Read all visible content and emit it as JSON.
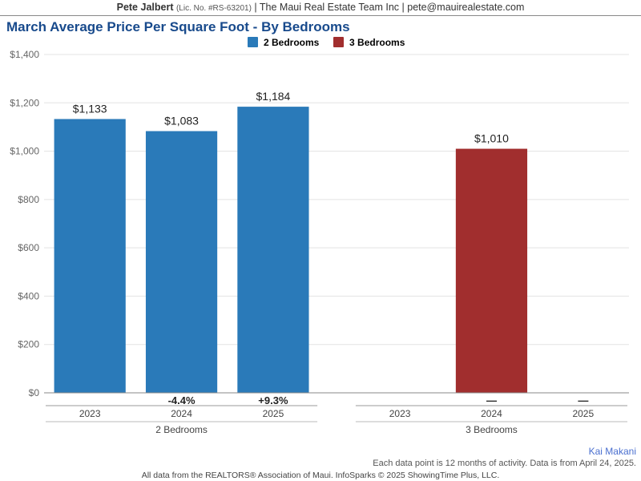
{
  "header": {
    "name": "Pete Jalbert",
    "license": "(Lic. No. #RS-63201)",
    "sep": " | ",
    "company": "The Maui Real Estate Team Inc",
    "email": "pete@mauirealestate.com"
  },
  "chart": {
    "type": "bar",
    "title": "March Average Price Per Square Foot - By Bedrooms",
    "title_color": "#184a8c",
    "title_fontsize": 17,
    "legend": [
      {
        "label": "2 Bedrooms",
        "color": "#2a7ab9"
      },
      {
        "label": "3 Bedrooms",
        "color": "#a12e2e"
      }
    ],
    "ylim": [
      0,
      1400
    ],
    "ytick_step": 200,
    "yticks": [
      "$0",
      "$200",
      "$400",
      "$600",
      "$800",
      "$1,000",
      "$1,200",
      "$1,400"
    ],
    "grid_color": "#e3e3e3",
    "axis_color": "#888888",
    "background_color": "#ffffff",
    "label_fontsize": 12,
    "bar_label_fontsize": 14,
    "groups": [
      {
        "name": "2 Bedrooms",
        "color": "#2a7ab9",
        "bars": [
          {
            "category": "2023",
            "value": 1133,
            "label": "$1,133",
            "delta": ""
          },
          {
            "category": "2024",
            "value": 1083,
            "label": "$1,083",
            "delta": "-4.4%"
          },
          {
            "category": "2025",
            "value": 1184,
            "label": "$1,184",
            "delta": "+9.3%"
          }
        ]
      },
      {
        "name": "3 Bedrooms",
        "color": "#a12e2e",
        "bars": [
          {
            "category": "2023",
            "value": null,
            "label": "",
            "delta": ""
          },
          {
            "category": "2024",
            "value": 1010,
            "label": "$1,010",
            "delta": "—"
          },
          {
            "category": "2025",
            "value": null,
            "label": "",
            "delta": "—"
          }
        ]
      }
    ],
    "bar_width_ratio": 0.78,
    "group_gap_ratio": 0.35
  },
  "subnotes": {
    "brand": "Kai Makani",
    "note": "Each data point is 12 months of activity. Data is from April 24, 2025."
  },
  "footer": "All data from the REALTORS® Association of Maui. InfoSparks © 2025 ShowingTime Plus, LLC."
}
